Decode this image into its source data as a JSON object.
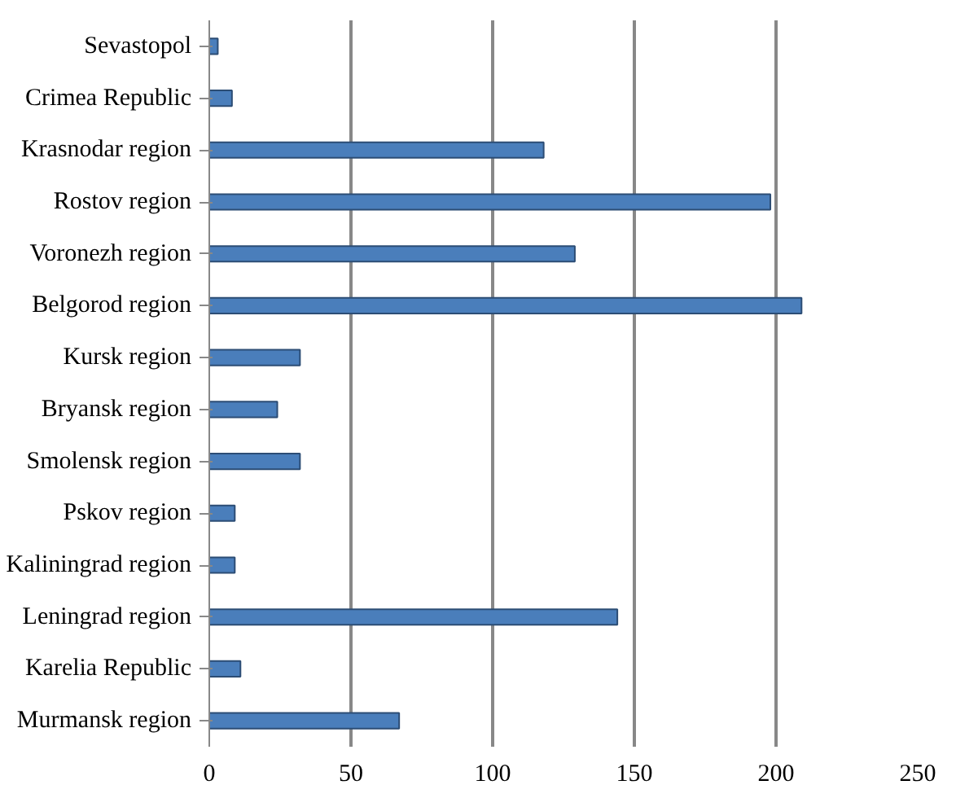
{
  "chart_data": {
    "type": "bar",
    "orientation": "horizontal",
    "categories": [
      "Sevastopol",
      "Crimea Republic",
      "Krasnodar region",
      "Rostov region",
      "Voronezh region",
      "Belgorod region",
      "Kursk region",
      "Bryansk region",
      "Smolensk region",
      "Pskov region",
      "Kaliningrad region",
      "Leningrad region",
      "Karelia Republic",
      "Murmansk region"
    ],
    "values": [
      3,
      8,
      118,
      198,
      129,
      209,
      32,
      24,
      32,
      9,
      9,
      144,
      11,
      67
    ],
    "color": "#4a7ebb",
    "xlim": [
      0,
      250
    ],
    "xticks": [
      0,
      50,
      100,
      150,
      200,
      250
    ],
    "grid": "x"
  }
}
